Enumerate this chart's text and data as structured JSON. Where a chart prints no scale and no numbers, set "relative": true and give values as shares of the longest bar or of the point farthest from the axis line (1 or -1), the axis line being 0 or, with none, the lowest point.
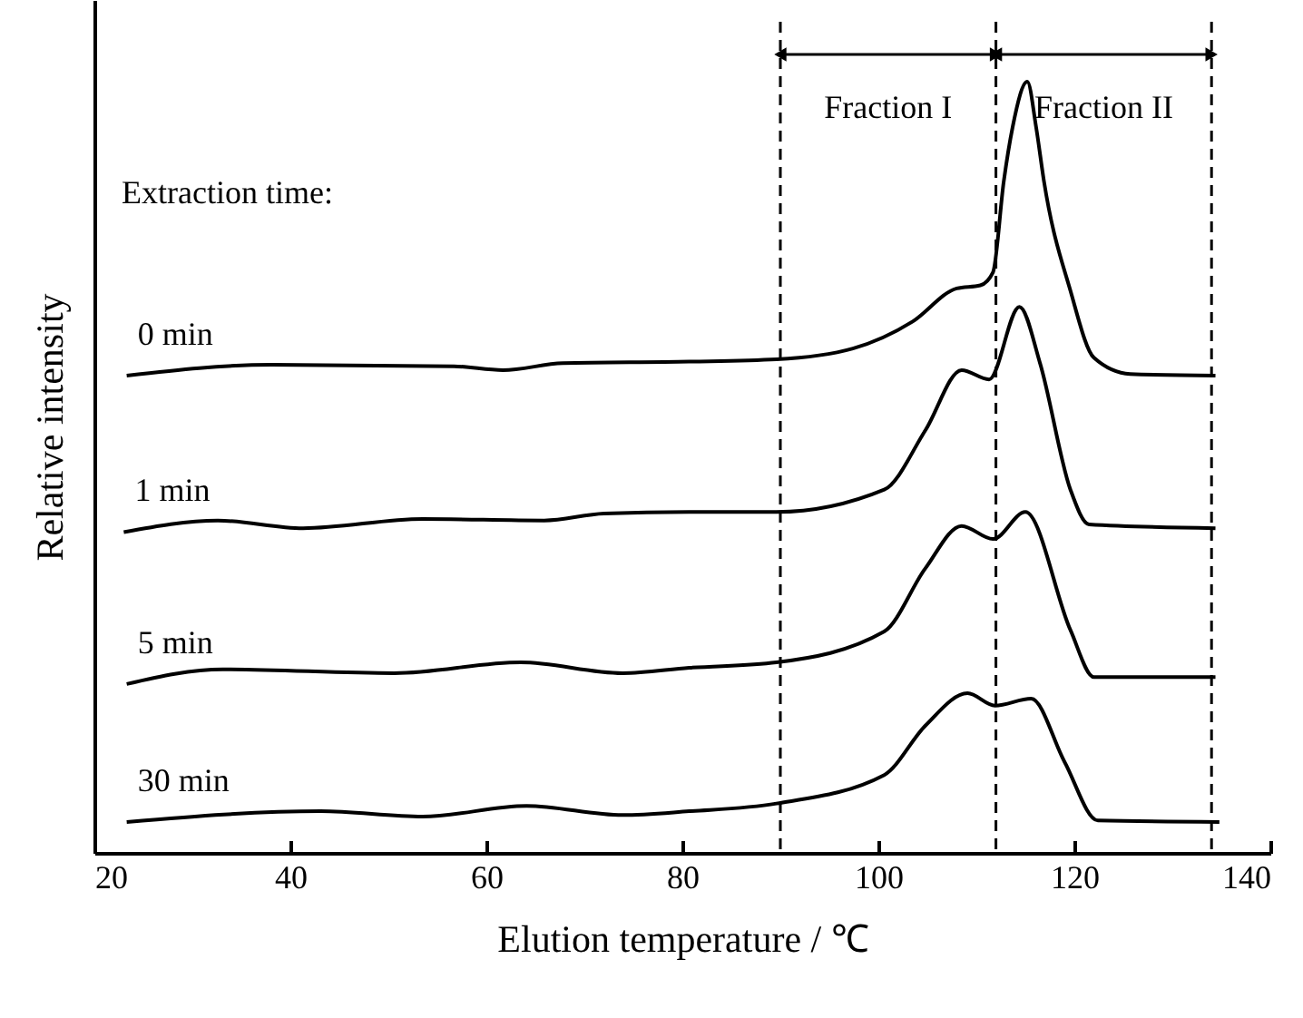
{
  "chart_data": {
    "type": "line",
    "relative": true,
    "xlabel": "Elution temperature / ℃",
    "ylabel": "Relative intensity",
    "legend_title": "Extraction time:",
    "xlim": [
      20,
      140
    ],
    "xticks": [
      20,
      40,
      60,
      80,
      100,
      120,
      140
    ],
    "marker": "none",
    "line_style": "solid",
    "grid": false,
    "annotations": [
      "Fraction I",
      "Fraction II"
    ],
    "series": [
      {
        "name": "0 min",
        "color": "#000000",
        "x": [
          23.3,
          38.1,
          56.7,
          61.7,
          67.8,
          80.7,
          89.6,
          97.4,
          103.5,
          108,
          110.4,
          111.7,
          112.8,
          113.7,
          115.2,
          116.1,
          116.9,
          119.6,
          122,
          125.7,
          134.4
        ],
        "values": [
          0.619,
          0.633,
          0.631,
          0.626,
          0.635,
          0.637,
          0.64,
          0.654,
          0.689,
          0.732,
          0.736,
          0.753,
          0.871,
          0.941,
          1,
          0.941,
          0.871,
          0.729,
          0.642,
          0.621,
          0.619
        ]
      },
      {
        "name": "1 min",
        "color": "#000000",
        "x": [
          23,
          32.6,
          41.3,
          53.5,
          65.9,
          72,
          80.7,
          89.6,
          100.6,
          104.8,
          108.5,
          111.3,
          114.4,
          116.5,
          119.6,
          121.5,
          134.4
        ],
        "values": [
          0.416,
          0.431,
          0.421,
          0.433,
          0.431,
          0.44,
          0.442,
          0.442,
          0.471,
          0.548,
          0.626,
          0.614,
          0.708,
          0.635,
          0.471,
          0.426,
          0.421
        ]
      },
      {
        "name": "5 min",
        "color": "#000000",
        "x": [
          23.3,
          33.1,
          50.6,
          63.5,
          73.9,
          80.7,
          89.6,
          100.6,
          104.8,
          108.5,
          111.7,
          115,
          119.6,
          122,
          134.4
        ],
        "values": [
          0.219,
          0.238,
          0.233,
          0.247,
          0.233,
          0.24,
          0.247,
          0.287,
          0.369,
          0.424,
          0.407,
          0.442,
          0.289,
          0.228,
          0.228
        ]
      },
      {
        "name": "30 min",
        "color": "#000000",
        "x": [
          23.3,
          43.1,
          53.5,
          64.1,
          73.9,
          80.7,
          89.6,
          100.6,
          104.8,
          109.1,
          111.9,
          115.6,
          119,
          122.4,
          134.8
        ],
        "values": [
          0.04,
          0.054,
          0.047,
          0.061,
          0.049,
          0.054,
          0.064,
          0.101,
          0.165,
          0.207,
          0.191,
          0.2,
          0.118,
          0.042,
          0.04
        ]
      }
    ],
    "ref_lines": [
      {
        "axis": "x",
        "value": 90,
        "line_style": "dashed"
      },
      {
        "axis": "x",
        "value": 112,
        "line_style": "dashed"
      },
      {
        "axis": "x",
        "value": 134,
        "line_style": "dashed"
      }
    ]
  }
}
